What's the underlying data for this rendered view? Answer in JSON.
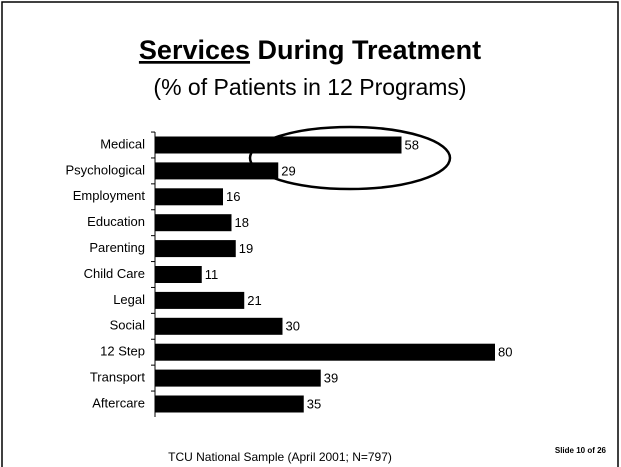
{
  "chart_data": {
    "type": "bar",
    "orientation": "horizontal",
    "title": "Services During Treatment",
    "subtitle": "(% of Patients in 12 Programs)",
    "footer": "TCU National Sample (April 2001; N=797)",
    "slide_number": "Slide 10 of 26",
    "categories": [
      "Medical",
      "Psychological",
      "Employment",
      "Education",
      "Parenting",
      "Child Care",
      "Legal",
      "Social",
      "12 Step",
      "Transport",
      "Aftercare"
    ],
    "values": [
      58,
      29,
      16,
      18,
      19,
      11,
      21,
      30,
      80,
      39,
      35
    ],
    "color": "#000000"
  }
}
